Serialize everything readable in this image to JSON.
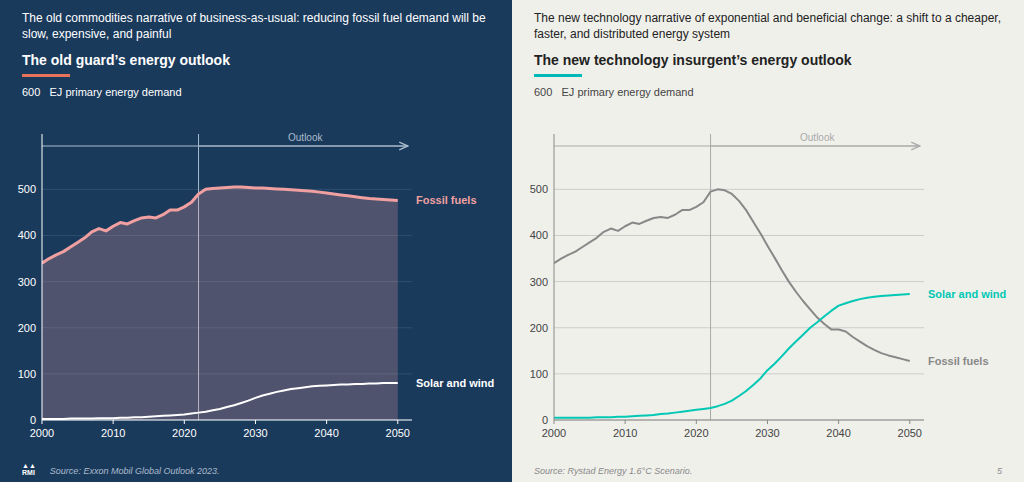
{
  "chart_data": [
    {
      "type": "line",
      "title": "The old commodities narrative of business-as-usual: reducing fossil fuel demand will be slow, expensive, and painful",
      "subtitle": "The old guard’s energy outlook",
      "y_label": "600   EJ primary energy demand",
      "x": [
        2000,
        2001,
        2002,
        2003,
        2004,
        2005,
        2006,
        2007,
        2008,
        2009,
        2010,
        2011,
        2012,
        2013,
        2014,
        2015,
        2016,
        2017,
        2018,
        2019,
        2020,
        2021,
        2022,
        2023,
        2024,
        2025,
        2026,
        2027,
        2028,
        2029,
        2030,
        2031,
        2032,
        2033,
        2034,
        2035,
        2036,
        2037,
        2038,
        2039,
        2040,
        2041,
        2042,
        2043,
        2044,
        2045,
        2046,
        2047,
        2048,
        2049,
        2050
      ],
      "series": [
        {
          "name": "Fossil fuels",
          "type": "area",
          "color": "#f0a0a0",
          "values": [
            340,
            350,
            358,
            365,
            375,
            385,
            395,
            408,
            415,
            410,
            420,
            428,
            425,
            432,
            438,
            440,
            438,
            445,
            455,
            455,
            462,
            472,
            490,
            500,
            502,
            503,
            504,
            505,
            505,
            504,
            503,
            503,
            502,
            501,
            500,
            499,
            498,
            497,
            496,
            494,
            492,
            490,
            488,
            486,
            484,
            482,
            480,
            479,
            478,
            477,
            476
          ]
        },
        {
          "name": "Solar and wind",
          "type": "line",
          "color": "#ffffff",
          "values": [
            2,
            2,
            2,
            2,
            3,
            3,
            3,
            3,
            4,
            4,
            4,
            5,
            5,
            6,
            6,
            7,
            8,
            9,
            10,
            11,
            12,
            14,
            16,
            18,
            21,
            24,
            28,
            32,
            37,
            42,
            48,
            53,
            57,
            61,
            64,
            67,
            69,
            71,
            73,
            74,
            75,
            76,
            77,
            77,
            78,
            78,
            79,
            79,
            80,
            80,
            80
          ]
        }
      ],
      "xlim": [
        2000,
        2052
      ],
      "ylim": [
        0,
        620
      ],
      "xticks": [
        2000,
        2010,
        2020,
        2030,
        2040,
        2050
      ],
      "yticks": [
        0,
        100,
        200,
        300,
        400,
        500
      ],
      "grid": true,
      "annotations": [
        {
          "text": "Outlook",
          "x": 2022
        },
        {
          "text": "▲▲\nRMI"
        },
        {
          "text": "Source: Exxon Mobil Global Outlook 2023."
        }
      ]
    },
    {
      "type": "line",
      "title": "The new technology narrative of exponential and beneficial change: a shift to a cheaper, faster, and distributed energy system",
      "subtitle": "The new technology insurgent’s energy outlook",
      "y_label": "600   EJ primary energy demand",
      "x": [
        2000,
        2001,
        2002,
        2003,
        2004,
        2005,
        2006,
        2007,
        2008,
        2009,
        2010,
        2011,
        2012,
        2013,
        2014,
        2015,
        2016,
        2017,
        2018,
        2019,
        2020,
        2021,
        2022,
        2023,
        2024,
        2025,
        2026,
        2027,
        2028,
        2029,
        2030,
        2031,
        2032,
        2033,
        2034,
        2035,
        2036,
        2037,
        2038,
        2039,
        2040,
        2041,
        2042,
        2043,
        2044,
        2045,
        2046,
        2047,
        2048,
        2049,
        2050
      ],
      "series": [
        {
          "name": "Fossil fuels",
          "type": "line",
          "color": "#888888",
          "values": [
            340,
            350,
            358,
            365,
            375,
            385,
            395,
            408,
            415,
            410,
            420,
            428,
            425,
            432,
            438,
            440,
            438,
            445,
            455,
            455,
            462,
            472,
            495,
            500,
            498,
            490,
            475,
            455,
            430,
            405,
            378,
            352,
            325,
            300,
            278,
            258,
            240,
            222,
            208,
            196,
            196,
            192,
            180,
            170,
            160,
            152,
            145,
            140,
            136,
            132,
            128
          ]
        },
        {
          "name": "Solar and wind",
          "type": "line",
          "color": "#00c8b4",
          "values": [
            5,
            5,
            5,
            5,
            5,
            5,
            6,
            6,
            6,
            7,
            7,
            8,
            9,
            10,
            11,
            13,
            14,
            16,
            18,
            20,
            22,
            24,
            26,
            30,
            35,
            42,
            52,
            63,
            76,
            90,
            108,
            122,
            138,
            155,
            170,
            185,
            200,
            212,
            225,
            237,
            248,
            253,
            258,
            262,
            265,
            267,
            269,
            270,
            271,
            272,
            273
          ]
        }
      ],
      "xlim": [
        2000,
        2052
      ],
      "ylim": [
        0,
        620
      ],
      "xticks": [
        2000,
        2010,
        2020,
        2030,
        2040,
        2050
      ],
      "yticks": [
        0,
        100,
        200,
        300,
        400,
        500
      ],
      "grid": true,
      "annotations": [
        {
          "text": "Outlook",
          "x": 2022
        },
        {
          "text": "Source: Rystad Energy 1.6°C Scenario."
        },
        {
          "text": "5"
        }
      ]
    }
  ]
}
